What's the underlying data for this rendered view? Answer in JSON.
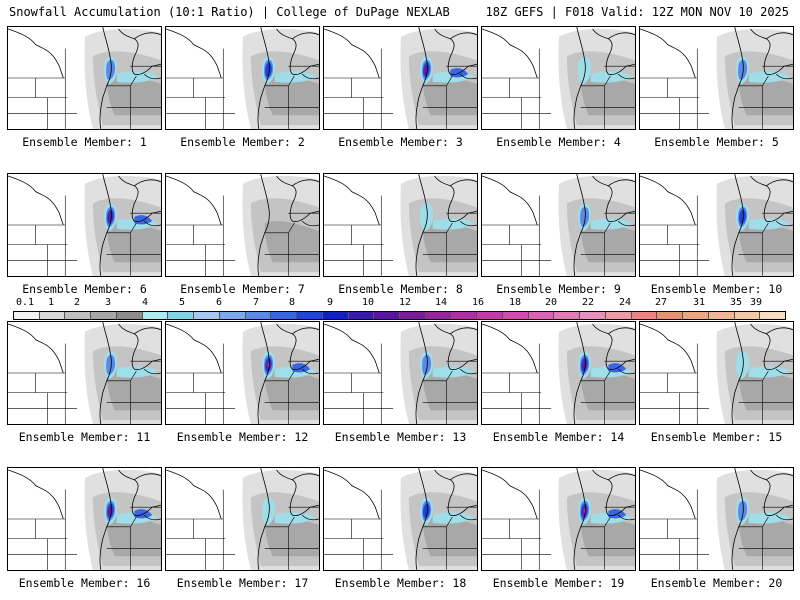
{
  "header": {
    "title_left": "Snowfall Accumulation (10:1 Ratio) | College of DuPage NEXLAB",
    "title_right": "18Z GEFS | F018 Valid: 12Z MON NOV 10 2025"
  },
  "legend": {
    "ticks": [
      "0.1",
      "1",
      "2",
      "3",
      "4",
      "5",
      "6",
      "7",
      "8",
      "9",
      "10",
      "12",
      "14",
      "16",
      "18",
      "20",
      "22",
      "24",
      "27",
      "31",
      "35",
      "39"
    ],
    "colors": [
      "#f2f2f2",
      "#d9d9d9",
      "#bfbfbf",
      "#a6a6a6",
      "#8c8c8c",
      "#aeeaf0",
      "#7fd4e6",
      "#a8c8f2",
      "#7fa8ec",
      "#5c88e6",
      "#3a66e0",
      "#1f44d6",
      "#1020c4",
      "#3a1aa8",
      "#5a14a0",
      "#7a1a9c",
      "#96249c",
      "#ae30a4",
      "#c23ca8",
      "#d24cae",
      "#dc62b4",
      "#e27ab8",
      "#e890c0",
      "#ec9aa6",
      "#ee8484",
      "#e69078",
      "#eaa486",
      "#eeb898",
      "#f2caa8",
      "#f6dcc0"
    ]
  },
  "panels": [
    {
      "label": "Ensemble Member: 1",
      "intensity": 2
    },
    {
      "label": "Ensemble Member: 2",
      "intensity": 3
    },
    {
      "label": "Ensemble Member: 3",
      "intensity": 4
    },
    {
      "label": "Ensemble Member: 4",
      "intensity": 1
    },
    {
      "label": "Ensemble Member: 5",
      "intensity": 2
    },
    {
      "label": "Ensemble Member: 6",
      "intensity": 4
    },
    {
      "label": "Ensemble Member: 7",
      "intensity": 0
    },
    {
      "label": "Ensemble Member: 8",
      "intensity": 1
    },
    {
      "label": "Ensemble Member: 9",
      "intensity": 2
    },
    {
      "label": "Ensemble Member: 10",
      "intensity": 3
    },
    {
      "label": "Ensemble Member: 11",
      "intensity": 2
    },
    {
      "label": "Ensemble Member: 12",
      "intensity": 5
    },
    {
      "label": "Ensemble Member: 13",
      "intensity": 2
    },
    {
      "label": "Ensemble Member: 14",
      "intensity": 4
    },
    {
      "label": "Ensemble Member: 15",
      "intensity": 1
    },
    {
      "label": "Ensemble Member: 16",
      "intensity": 4
    },
    {
      "label": "Ensemble Member: 17",
      "intensity": 1
    },
    {
      "label": "Ensemble Member: 18",
      "intensity": 3
    },
    {
      "label": "Ensemble Member: 19",
      "intensity": 5
    },
    {
      "label": "Ensemble Member: 20",
      "intensity": 2
    }
  ]
}
